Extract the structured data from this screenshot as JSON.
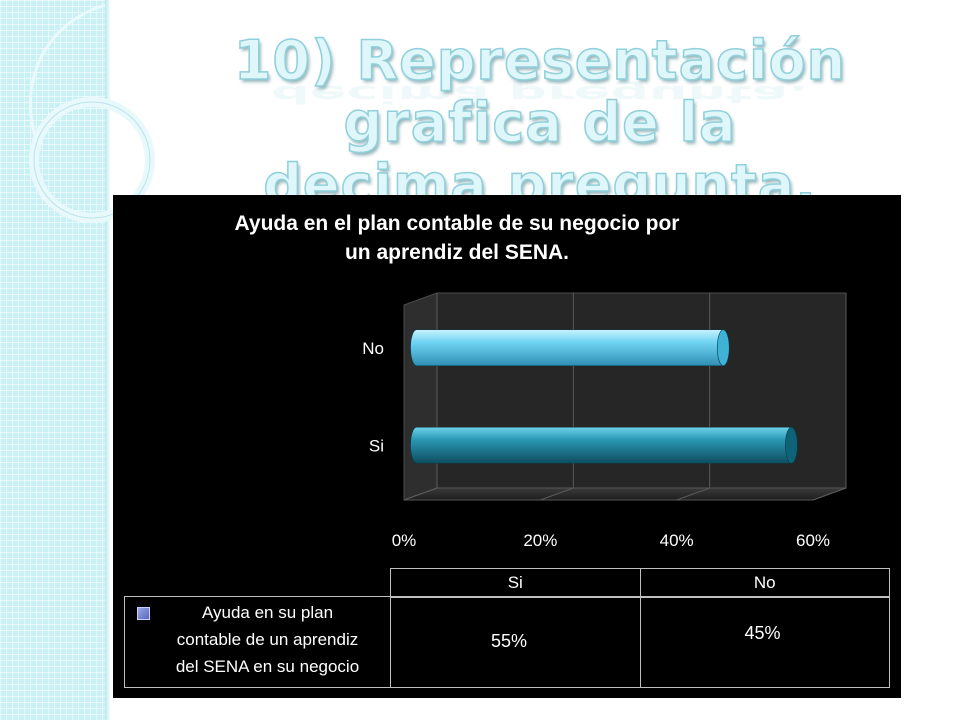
{
  "slide": {
    "title_line1": "10) Representación grafica de la",
    "title_line2": "decima pregunta."
  },
  "chart_data": {
    "type": "bar",
    "orientation": "horizontal",
    "style": "3d-cylinder",
    "title": "Ayuda en el plan contable de su negocio por un aprendiz del SENA.",
    "title_lines": [
      "Ayuda en el plan contable de su negocio por",
      "un aprendiz del SENA."
    ],
    "categories": [
      "Si",
      "No"
    ],
    "series": [
      {
        "name": "Ayuda en su plan contable de un aprendiz del SENA en su negocio",
        "values": [
          0.55,
          0.45
        ],
        "colors": [
          "#1e7f98",
          "#4fc3e8"
        ]
      }
    ],
    "x_ticks": [
      "0%",
      "20%",
      "40%",
      "60%"
    ],
    "xlim": [
      0,
      0.6
    ],
    "grid": true,
    "legend": "data-table",
    "data_table": {
      "headers": [
        "Si",
        "No"
      ],
      "row_label_lines": [
        "Ayuda en su plan",
        "contable de un aprendiz",
        "del SENA en su negocio"
      ],
      "values": [
        "55%",
        "45%"
      ]
    }
  },
  "colors": {
    "background": "#ffffff",
    "chart_background": "#000000",
    "strip": "#c9f1f5",
    "title_fill": "#dff6fa"
  }
}
